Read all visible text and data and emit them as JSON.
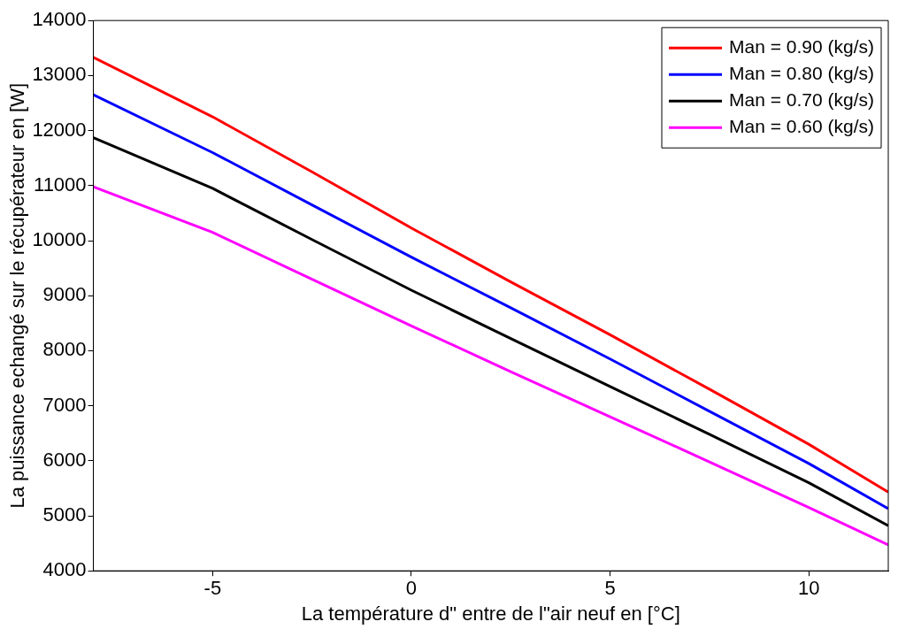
{
  "chart_data": {
    "type": "line",
    "xlabel": "La température d\" entre de l\"air neuf en [°C]",
    "ylabel": "La puissance echangé sur le récupérateur en [W]",
    "x": [
      -8,
      -5,
      -2.5,
      0,
      2.5,
      5,
      7.5,
      10,
      12
    ],
    "series": [
      {
        "name": "Man = 0.90 (kg/s)",
        "color": "#ff0000",
        "values": [
          13330,
          12250,
          11250,
          10230,
          9250,
          8290,
          7300,
          6300,
          5430
        ]
      },
      {
        "name": "Man = 0.80 (kg/s)",
        "color": "#0000ff",
        "values": [
          12650,
          11600,
          10650,
          9700,
          8780,
          7850,
          6900,
          5950,
          5130
        ]
      },
      {
        "name": "Man = 0.70 (kg/s)",
        "color": "#000000",
        "values": [
          11870,
          10950,
          10020,
          9100,
          8220,
          7350,
          6480,
          5600,
          4820
        ]
      },
      {
        "name": "Man = 0.60 (kg/s)",
        "color": "#ff00ff",
        "values": [
          10980,
          10150,
          9300,
          8450,
          7620,
          6800,
          5980,
          5150,
          4470
        ]
      }
    ],
    "xlim": [
      -8,
      12
    ],
    "xticks": [
      -5,
      0,
      5,
      10
    ],
    "ylim": [
      4000,
      14000
    ],
    "yticks": [
      4000,
      5000,
      6000,
      7000,
      8000,
      9000,
      10000,
      11000,
      12000,
      13000,
      14000
    ],
    "grid": false,
    "legend": "top right",
    "marker": "none",
    "line_style": "solid"
  }
}
